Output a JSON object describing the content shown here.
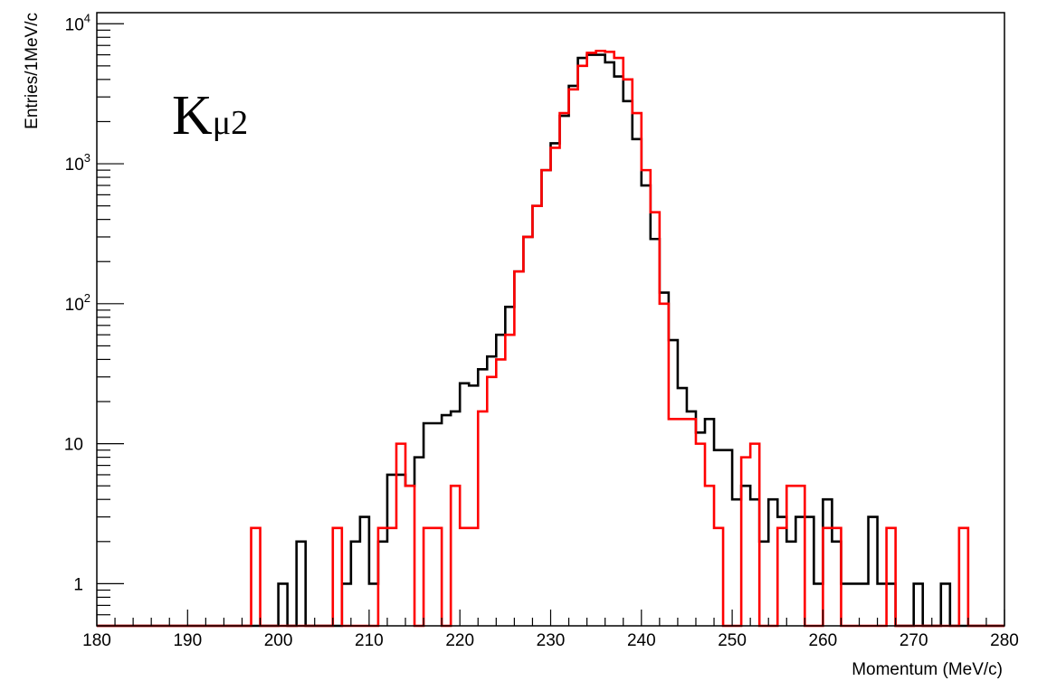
{
  "chart_data": {
    "type": "histogram",
    "title": "",
    "xlabel": "Momentum (MeV/c)",
    "ylabel": "Entries/1MeV/c",
    "annotation": {
      "main": "K",
      "sub": "μ2"
    },
    "xlim": [
      180,
      280
    ],
    "ylim": [
      0.5,
      12000
    ],
    "yscale": "log",
    "bin_width": 1,
    "x_ticks": [
      180,
      190,
      200,
      210,
      220,
      230,
      240,
      250,
      260,
      270,
      280
    ],
    "x_tick_labels": [
      "180",
      "190",
      "200",
      "210",
      "220",
      "230",
      "240",
      "250",
      "260",
      "270",
      "280"
    ],
    "y_ticks": [
      {
        "value": 10000,
        "base": "10",
        "exp": "4"
      },
      {
        "value": 1000,
        "base": "10",
        "exp": "3"
      },
      {
        "value": 100,
        "base": "10",
        "exp": "2"
      },
      {
        "value": 10,
        "base": "10",
        "exp": ""
      },
      {
        "value": 1,
        "base": "1",
        "exp": ""
      }
    ],
    "grid": false,
    "legend": "none",
    "series": [
      {
        "color": "#000000",
        "x_start": 180,
        "values": [
          0,
          0,
          0,
          0,
          0,
          0,
          0,
          0,
          0,
          0,
          0,
          0,
          0,
          0,
          0,
          0,
          0,
          0,
          0,
          0,
          1,
          0,
          2,
          0,
          0,
          0,
          0,
          1,
          2,
          3,
          1,
          2,
          6,
          6,
          5,
          8,
          14,
          14,
          16,
          17,
          27,
          26,
          34,
          42,
          60,
          95,
          170,
          300,
          500,
          900,
          1400,
          2200,
          3600,
          5700,
          6000,
          6000,
          5300,
          4200,
          2800,
          1500,
          700,
          290,
          120,
          55,
          25,
          17,
          12,
          15,
          9,
          9,
          4,
          5,
          4,
          2,
          4,
          3,
          2,
          3,
          3,
          1,
          4,
          2,
          1,
          1,
          1,
          3,
          1,
          1,
          0,
          0,
          1,
          0,
          0,
          1,
          0,
          0,
          0,
          0,
          0,
          0
        ]
      },
      {
        "color": "#ff0000",
        "x_start": 180,
        "values": [
          0,
          0,
          0,
          0,
          0,
          0,
          0,
          0,
          0,
          0,
          0,
          0,
          0,
          0,
          0,
          0,
          0,
          2.5,
          0,
          0,
          0,
          0,
          0,
          0,
          0,
          0,
          2.5,
          0,
          0,
          0,
          0,
          2.5,
          2.5,
          10,
          5,
          0,
          2.5,
          2.5,
          0,
          5,
          2.5,
          2.5,
          17,
          30,
          40,
          60,
          170,
          300,
          500,
          900,
          1300,
          2300,
          3400,
          5000,
          6200,
          6400,
          6300,
          5700,
          4000,
          2300,
          900,
          450,
          100,
          15,
          15,
          15,
          10,
          5,
          2.5,
          0,
          0,
          8,
          10,
          0,
          0,
          2.5,
          5,
          5,
          0,
          0,
          2.5,
          2.5,
          0,
          0,
          0,
          0,
          0,
          2.5,
          0,
          0,
          0,
          0,
          0,
          0,
          0,
          2.5,
          0,
          0,
          0,
          0
        ]
      }
    ]
  }
}
